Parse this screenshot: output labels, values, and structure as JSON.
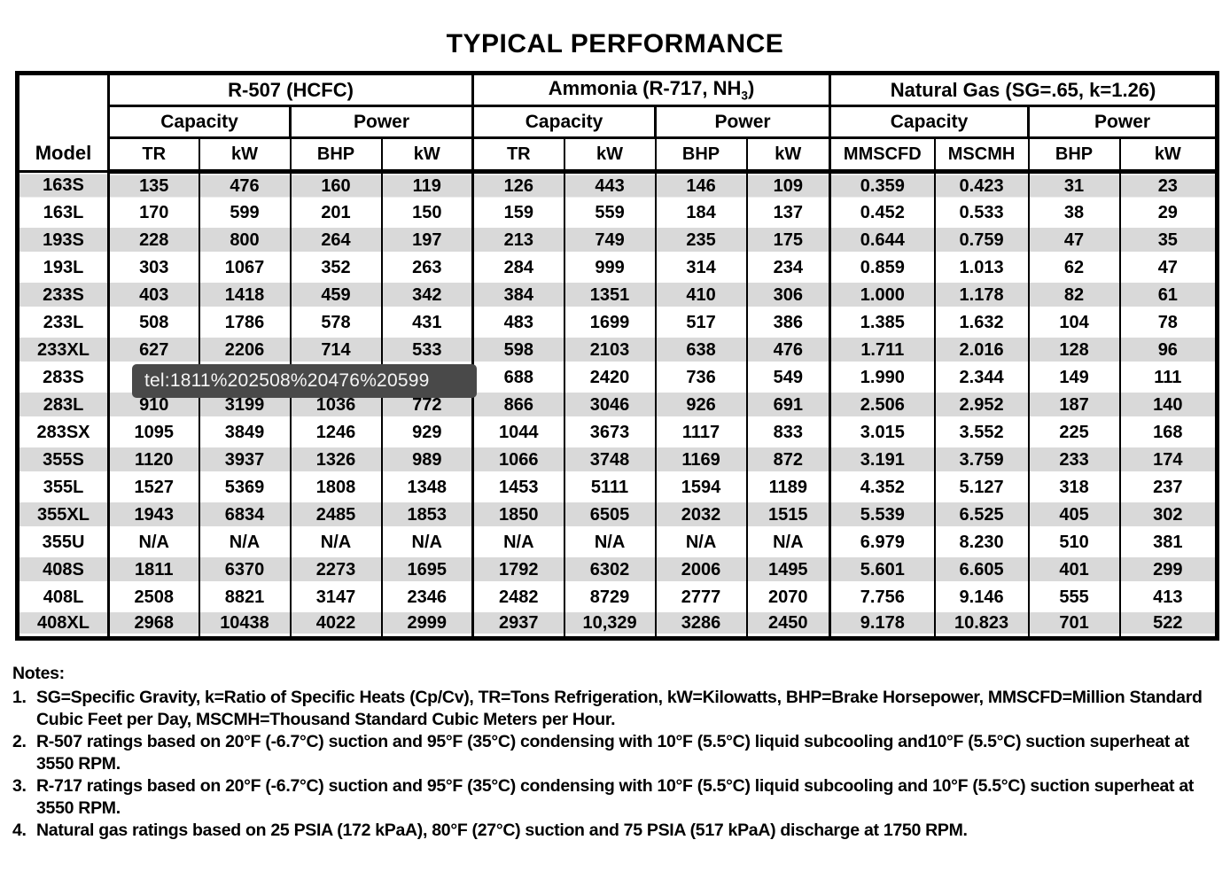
{
  "title": "TYPICAL PERFORMANCE",
  "tooltip": {
    "text": "tel:1811%202508%20476%20599"
  },
  "table": {
    "model_header": "Model",
    "groups": [
      {
        "pre": "R-507 (HCFC)",
        "sub": "",
        "post": ""
      },
      {
        "pre": "Ammonia (R-717, NH",
        "sub": "3",
        "post": ")"
      },
      {
        "pre": "Natural Gas (SG=.65, k=1.26)",
        "sub": "",
        "post": ""
      }
    ],
    "subheaders": [
      "Capacity",
      "Power",
      "Capacity",
      "Power",
      "Capacity",
      "Power"
    ],
    "units": [
      "TR",
      "kW",
      "BHP",
      "kW",
      "TR",
      "kW",
      "BHP",
      "kW",
      "MMSCFD",
      "MSCMH",
      "BHP",
      "kW"
    ],
    "rows": [
      {
        "model": "163S",
        "values": [
          "135",
          "476",
          "160",
          "119",
          "126",
          "443",
          "146",
          "109",
          "0.359",
          "0.423",
          "31",
          "23"
        ]
      },
      {
        "model": "163L",
        "values": [
          "170",
          "599",
          "201",
          "150",
          "159",
          "559",
          "184",
          "137",
          "0.452",
          "0.533",
          "38",
          "29"
        ]
      },
      {
        "model": "193S",
        "values": [
          "228",
          "800",
          "264",
          "197",
          "213",
          "749",
          "235",
          "175",
          "0.644",
          "0.759",
          "47",
          "35"
        ]
      },
      {
        "model": "193L",
        "values": [
          "303",
          "1067",
          "352",
          "263",
          "284",
          "999",
          "314",
          "234",
          "0.859",
          "1.013",
          "62",
          "47"
        ]
      },
      {
        "model": "233S",
        "values": [
          "403",
          "1418",
          "459",
          "342",
          "384",
          "1351",
          "410",
          "306",
          "1.000",
          "1.178",
          "82",
          "61"
        ]
      },
      {
        "model": "233L",
        "values": [
          "508",
          "1786",
          "578",
          "431",
          "483",
          "1699",
          "517",
          "386",
          "1.385",
          "1.632",
          "104",
          "78"
        ]
      },
      {
        "model": "233XL",
        "values": [
          "627",
          "2206",
          "714",
          "533",
          "598",
          "2103",
          "638",
          "476",
          "1.711",
          "2.016",
          "128",
          "96"
        ]
      },
      {
        "model": "283S",
        "values": [
          "",
          "",
          "",
          "",
          "688",
          "2420",
          "736",
          "549",
          "1.990",
          "2.344",
          "149",
          "111"
        ]
      },
      {
        "model": "283L",
        "values": [
          "910",
          "3199",
          "1036",
          "772",
          "866",
          "3046",
          "926",
          "691",
          "2.506",
          "2.952",
          "187",
          "140"
        ]
      },
      {
        "model": "283SX",
        "values": [
          "1095",
          "3849",
          "1246",
          "929",
          "1044",
          "3673",
          "1117",
          "833",
          "3.015",
          "3.552",
          "225",
          "168"
        ]
      },
      {
        "model": "355S",
        "values": [
          "1120",
          "3937",
          "1326",
          "989",
          "1066",
          "3748",
          "1169",
          "872",
          "3.191",
          "3.759",
          "233",
          "174"
        ]
      },
      {
        "model": "355L",
        "values": [
          "1527",
          "5369",
          "1808",
          "1348",
          "1453",
          "5111",
          "1594",
          "1189",
          "4.352",
          "5.127",
          "318",
          "237"
        ]
      },
      {
        "model": "355XL",
        "values": [
          "1943",
          "6834",
          "2485",
          "1853",
          "1850",
          "6505",
          "2032",
          "1515",
          "5.539",
          "6.525",
          "405",
          "302"
        ]
      },
      {
        "model": "355U",
        "values": [
          "N/A",
          "N/A",
          "N/A",
          "N/A",
          "N/A",
          "N/A",
          "N/A",
          "N/A",
          "6.979",
          "8.230",
          "510",
          "381"
        ]
      },
      {
        "model": "408S",
        "values": [
          "1811",
          "6370",
          "2273",
          "1695",
          "1792",
          "6302",
          "2006",
          "1495",
          "5.601",
          "6.605",
          "401",
          "299"
        ]
      },
      {
        "model": "408L",
        "values": [
          "2508",
          "8821",
          "3147",
          "2346",
          "2482",
          "8729",
          "2777",
          "2070",
          "7.756",
          "9.146",
          "555",
          "413"
        ]
      },
      {
        "model": "408XL",
        "values": [
          "2968",
          "10438",
          "4022",
          "2999",
          "2937",
          "10,329",
          "3286",
          "2450",
          "9.178",
          "10.823",
          "701",
          "522"
        ]
      }
    ]
  },
  "notes": {
    "title": "Notes:",
    "items": [
      {
        "num": "1.",
        "text": "SG=Specific Gravity, k=Ratio of Specific Heats (Cp/Cv), TR=Tons Refrigeration, kW=Kilowatts, BHP=Brake Horsepower, MMSCFD=Million Standard Cubic Feet per Day, MSCMH=Thousand Standard Cubic Meters per Hour."
      },
      {
        "num": "2.",
        "text": "R-507 ratings based on 20°F (-6.7°C) suction and 95°F (35°C) condensing with 10°F (5.5°C) liquid subcooling and10°F (5.5°C) suction superheat at 3550 RPM."
      },
      {
        "num": "3.",
        "text": "R-717 ratings based on 20°F (-6.7°C) suction and 95°F (35°C) condensing with 10°F (5.5°C) liquid subcooling and 10°F (5.5°C) suction superheat at 3550 RPM."
      },
      {
        "num": "4.",
        "text": "Natural gas ratings based on 25 PSIA (172 kPaA), 80°F (27°C) suction and 75 PSIA (517 kPaA) discharge at 1750 RPM."
      }
    ]
  }
}
